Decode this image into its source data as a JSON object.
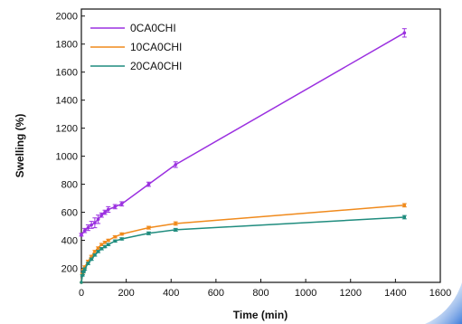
{
  "chart_data": {
    "type": "line",
    "xlabel": "Time (min)",
    "ylabel": "Swelling (%)",
    "xlim": [
      0,
      1600
    ],
    "ylim": [
      100,
      2050
    ],
    "xticks": [
      0,
      200,
      400,
      600,
      800,
      1000,
      1200,
      1400,
      1600
    ],
    "yticks": [
      200,
      400,
      600,
      800,
      1000,
      1200,
      1400,
      1600,
      1800,
      2000
    ],
    "grid": false,
    "legend_position": "top-left",
    "series": [
      {
        "name": "0CA0CHI",
        "color": "#9b30e0",
        "x": [
          0,
          15,
          30,
          45,
          60,
          75,
          90,
          105,
          120,
          150,
          180,
          300,
          420,
          1440
        ],
        "y": [
          440,
          470,
          490,
          510,
          525,
          550,
          580,
          600,
          620,
          640,
          660,
          800,
          940,
          1880
        ],
        "error": [
          10,
          15,
          20,
          25,
          35,
          30,
          15,
          15,
          20,
          15,
          15,
          15,
          20,
          30
        ]
      },
      {
        "name": "10CA0CHI",
        "color": "#f08a1c",
        "x": [
          0,
          5,
          10,
          15,
          30,
          45,
          60,
          75,
          90,
          105,
          120,
          150,
          180,
          300,
          420,
          1440
        ],
        "y": [
          100,
          160,
          190,
          210,
          250,
          285,
          320,
          345,
          370,
          385,
          400,
          425,
          445,
          490,
          520,
          650
        ],
        "error": [
          0,
          5,
          5,
          8,
          8,
          8,
          8,
          8,
          8,
          8,
          8,
          8,
          8,
          10,
          12,
          12
        ]
      },
      {
        "name": "20CA0CHI",
        "color": "#1f8c7e",
        "x": [
          0,
          5,
          10,
          15,
          30,
          45,
          60,
          75,
          90,
          105,
          120,
          150,
          180,
          300,
          420,
          1440
        ],
        "y": [
          100,
          150,
          175,
          195,
          235,
          265,
          295,
          320,
          340,
          355,
          370,
          395,
          410,
          450,
          475,
          565
        ],
        "error": [
          0,
          5,
          5,
          8,
          8,
          8,
          8,
          8,
          8,
          8,
          8,
          8,
          8,
          10,
          10,
          12
        ]
      }
    ]
  }
}
